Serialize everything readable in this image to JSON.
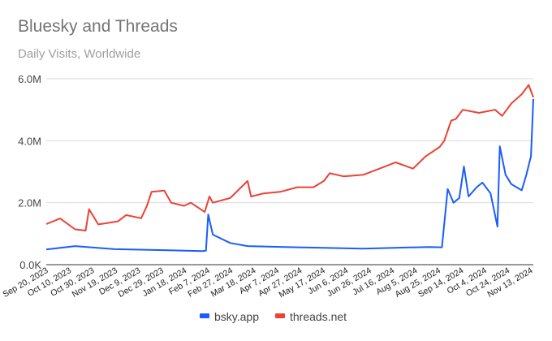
{
  "chart_data": {
    "type": "line",
    "title": "Bluesky and Threads",
    "subtitle": "Daily Visits, Worldwide",
    "xlabel": "",
    "ylabel": "",
    "ylim": [
      0,
      6000000
    ],
    "xlim": [
      "2023-09-20",
      "2024-11-14"
    ],
    "grid": true,
    "legend": "bottom",
    "y_ticks": [
      {
        "value": 0,
        "label": "0.0K"
      },
      {
        "value": 2000000,
        "label": "2.0M"
      },
      {
        "value": 4000000,
        "label": "4.0M"
      },
      {
        "value": 6000000,
        "label": "6.0M"
      }
    ],
    "x_ticks": [
      "Sep 20, 2023",
      "Oct 10, 2023",
      "Oct 30, 2023",
      "Nov 19, 2023",
      "Dec 9, 2023",
      "Dec 29, 2023",
      "Jan 18, 2024",
      "Feb 7, 2024",
      "Feb 27, 2024",
      "Mar 18, 2024",
      "Apr 7, 2024",
      "Apr 27, 2024",
      "May 17, 2024",
      "Jun 6, 2024",
      "Jun 26, 2024",
      "Jul 16, 2024",
      "Aug 5, 2024",
      "Aug 25, 2024",
      "Sep 14, 2024",
      "Oct 4, 2024",
      "Oct 24, 2024",
      "Nov 13, 2024"
    ],
    "series": [
      {
        "name": "bsky.app",
        "color": "#1a5cff",
        "points": [
          [
            "2023-09-20",
            490000
          ],
          [
            "2023-10-15",
            600000
          ],
          [
            "2023-11-18",
            500000
          ],
          [
            "2023-12-31",
            470000
          ],
          [
            "2024-02-02",
            440000
          ],
          [
            "2024-02-05",
            450000
          ],
          [
            "2024-02-07",
            1620000
          ],
          [
            "2024-02-11",
            970000
          ],
          [
            "2024-02-26",
            700000
          ],
          [
            "2024-03-12",
            600000
          ],
          [
            "2024-04-24",
            560000
          ],
          [
            "2024-06-20",
            520000
          ],
          [
            "2024-08-16",
            570000
          ],
          [
            "2024-08-27",
            560000
          ],
          [
            "2024-09-01",
            2440000
          ],
          [
            "2024-09-06",
            2000000
          ],
          [
            "2024-09-11",
            2150000
          ],
          [
            "2024-09-15",
            3170000
          ],
          [
            "2024-09-19",
            2200000
          ],
          [
            "2024-09-26",
            2500000
          ],
          [
            "2024-10-01",
            2650000
          ],
          [
            "2024-10-08",
            2300000
          ],
          [
            "2024-10-14",
            1230000
          ],
          [
            "2024-10-16",
            3820000
          ],
          [
            "2024-10-21",
            2900000
          ],
          [
            "2024-10-26",
            2600000
          ],
          [
            "2024-11-04",
            2400000
          ],
          [
            "2024-11-08",
            2900000
          ],
          [
            "2024-11-12",
            3500000
          ],
          [
            "2024-11-14",
            5350000
          ]
        ]
      },
      {
        "name": "threads.net",
        "color": "#ea4335",
        "points": [
          [
            "2023-09-20",
            1310000
          ],
          [
            "2023-10-02",
            1490000
          ],
          [
            "2023-10-15",
            1140000
          ],
          [
            "2023-10-24",
            1100000
          ],
          [
            "2023-10-27",
            1790000
          ],
          [
            "2023-11-04",
            1300000
          ],
          [
            "2023-11-21",
            1400000
          ],
          [
            "2023-11-28",
            1600000
          ],
          [
            "2023-12-11",
            1500000
          ],
          [
            "2023-12-16",
            1900000
          ],
          [
            "2023-12-20",
            2350000
          ],
          [
            "2023-12-31",
            2390000
          ],
          [
            "2024-01-06",
            2000000
          ],
          [
            "2024-01-17",
            1900000
          ],
          [
            "2024-01-23",
            2000000
          ],
          [
            "2024-02-04",
            1700000
          ],
          [
            "2024-02-08",
            2200000
          ],
          [
            "2024-02-11",
            2000000
          ],
          [
            "2024-02-26",
            2150000
          ],
          [
            "2024-03-12",
            2700000
          ],
          [
            "2024-03-15",
            2200000
          ],
          [
            "2024-03-26",
            2300000
          ],
          [
            "2024-04-09",
            2350000
          ],
          [
            "2024-04-24",
            2500000
          ],
          [
            "2024-05-08",
            2500000
          ],
          [
            "2024-05-17",
            2700000
          ],
          [
            "2024-05-22",
            2950000
          ],
          [
            "2024-06-03",
            2850000
          ],
          [
            "2024-06-20",
            2900000
          ],
          [
            "2024-07-04",
            3100000
          ],
          [
            "2024-07-18",
            3300000
          ],
          [
            "2024-08-02",
            3100000
          ],
          [
            "2024-08-13",
            3500000
          ],
          [
            "2024-08-25",
            3800000
          ],
          [
            "2024-08-29",
            4000000
          ],
          [
            "2024-09-04",
            4650000
          ],
          [
            "2024-09-08",
            4700000
          ],
          [
            "2024-09-14",
            5000000
          ],
          [
            "2024-09-28",
            4900000
          ],
          [
            "2024-10-12",
            5000000
          ],
          [
            "2024-10-18",
            4800000
          ],
          [
            "2024-10-26",
            5200000
          ],
          [
            "2024-11-04",
            5500000
          ],
          [
            "2024-11-10",
            5800000
          ],
          [
            "2024-11-14",
            5400000
          ]
        ]
      }
    ]
  }
}
